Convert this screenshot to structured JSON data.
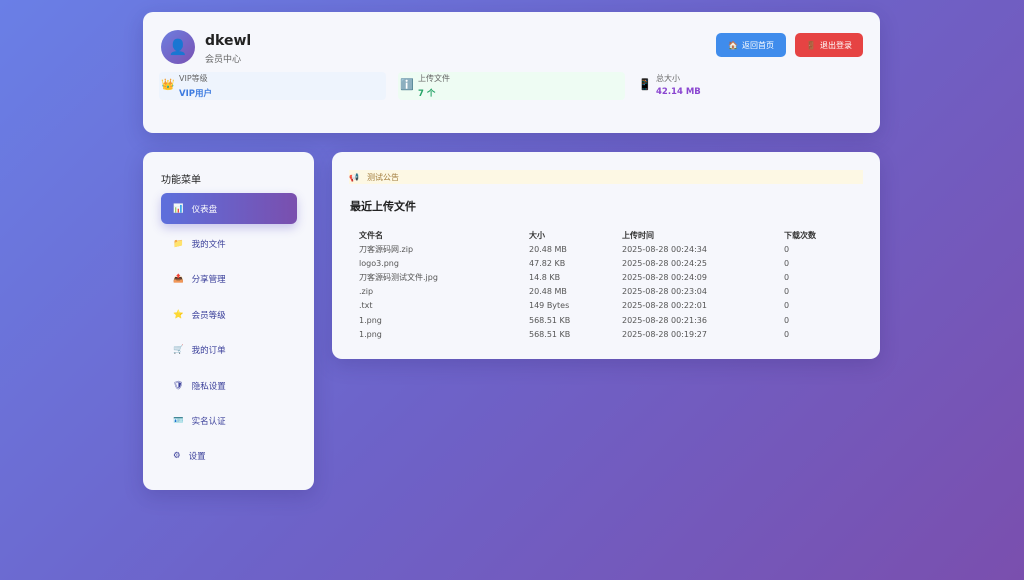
{
  "user": {
    "name": "dkewl",
    "subtitle": "会员中心",
    "avatar_icon": "user-avatar-icon"
  },
  "header": {
    "home_label": "返回首页",
    "logout_label": "退出登录",
    "home_color": "#3f8cec",
    "logout_color": "#e64343"
  },
  "stats": [
    {
      "label": "VIP等级",
      "value": "VIP用户",
      "icon": "crown-icon",
      "color": "#3d7be0"
    },
    {
      "label": "上传文件",
      "value": "7 个",
      "icon": "info-icon",
      "color": "#27a468"
    },
    {
      "label": "总大小",
      "value": "42.14 MB",
      "icon": "phone-icon",
      "color": "#8a45d0"
    }
  ],
  "sidebar": {
    "title": "功能菜单",
    "items": [
      {
        "label": "仪表盘",
        "icon": "📊"
      },
      {
        "label": "我的文件",
        "icon": "📁"
      },
      {
        "label": "分享管理",
        "icon": "📤"
      },
      {
        "label": "会员等级",
        "icon": "⭐"
      },
      {
        "label": "我的订单",
        "icon": "🛒"
      },
      {
        "label": "隐私设置",
        "icon": "🛡"
      },
      {
        "label": "实名认证",
        "icon": "🪪"
      },
      {
        "label": "设置",
        "icon": "⚙"
      }
    ]
  },
  "main": {
    "notice": "测试公告",
    "title": "最近上传文件",
    "columns": [
      "文件名",
      "大小",
      "上传时间",
      "下载次数"
    ],
    "rows": [
      [
        "刀客源码网.zip",
        "20.48 MB",
        "2025-08-28 00:24:34",
        "0"
      ],
      [
        "logo3.png",
        "47.82 KB",
        "2025-08-28 00:24:25",
        "0"
      ],
      [
        "刀客源码测试文件.jpg",
        "14.8 KB",
        "2025-08-28 00:24:09",
        "0"
      ],
      [
        ".zip",
        "20.48 MB",
        "2025-08-28 00:23:04",
        "0"
      ],
      [
        ".txt",
        "149 Bytes",
        "2025-08-28 00:22:01",
        "0"
      ],
      [
        "1.png",
        "568.51 KB",
        "2025-08-28 00:21:36",
        "0"
      ],
      [
        "1.png",
        "568.51 KB",
        "2025-08-28 00:19:27",
        "0"
      ]
    ]
  }
}
